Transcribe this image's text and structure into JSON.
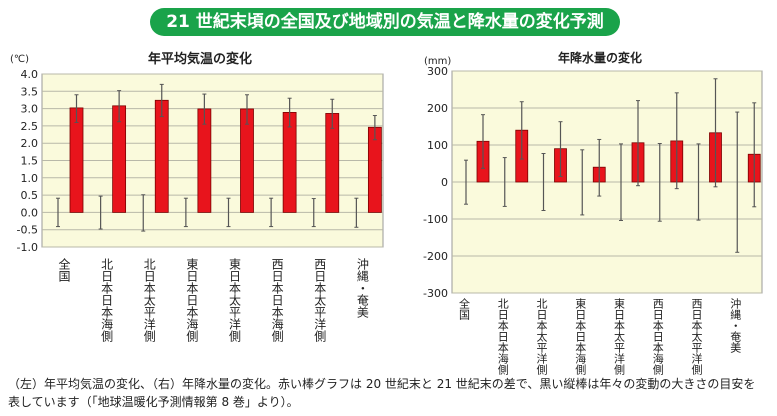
{
  "title": "21 世紀末頃の全国及び地域別の気温と降水量の変化予測",
  "caption": [
    "（左）年平均気温の変化、（右）年降水量の変化。赤い棒グラフは 20 世紀末と 21 世紀末の差で、黒い縦棒は年々の変動の大きさの目安を",
    "表しています（「地球温暖化予測情報第 8 巻」より）。"
  ],
  "colors": {
    "bar": "#e8141c",
    "plot_bg": "#fafadc",
    "grid": "#b8b8a8",
    "title_bg": "#1aa34a"
  },
  "chart_data": [
    {
      "type": "bar",
      "title": "年平均気温の変化",
      "ylabel": "(℃)",
      "ylim": [
        -1.0,
        4.0
      ],
      "yticks": [
        "4.0",
        "3.5",
        "3.0",
        "2.5",
        "2.0",
        "1.5",
        "1.0",
        "0.5",
        "0.0",
        "-0.5",
        "-1.0"
      ],
      "grid": true,
      "categories": [
        "全国",
        "北日本日本海側",
        "北日本太平洋側",
        "東日本日本海側",
        "東日本太平洋側",
        "西日本日本海側",
        "西日本太平洋側",
        "沖縄・奄美"
      ],
      "values": [
        3.02,
        3.08,
        3.24,
        2.99,
        2.99,
        2.89,
        2.86,
        2.46
      ],
      "error_ranges": [
        [
          2.6,
          3.4
        ],
        [
          2.62,
          3.52
        ],
        [
          2.77,
          3.7
        ],
        [
          2.55,
          3.42
        ],
        [
          2.55,
          3.4
        ],
        [
          2.47,
          3.3
        ],
        [
          2.43,
          3.27
        ],
        [
          2.1,
          2.8
        ]
      ],
      "variability": [
        [
          -0.41,
          0.41
        ],
        [
          -0.48,
          0.47
        ],
        [
          -0.54,
          0.51
        ],
        [
          -0.41,
          0.41
        ],
        [
          -0.41,
          0.41
        ],
        [
          -0.41,
          0.41
        ],
        [
          -0.41,
          0.4
        ],
        [
          -0.43,
          0.41
        ]
      ]
    },
    {
      "type": "bar",
      "title": "年降水量の変化",
      "ylabel": "(mm)",
      "ylim": [
        -300,
        300
      ],
      "yticks": [
        "300",
        "200",
        "100",
        "0",
        "-100",
        "-200",
        "-300"
      ],
      "grid": true,
      "categories": [
        "全国",
        "北日本日本海側",
        "北日本太平洋側",
        "東日本日本海側",
        "東日本太平洋側",
        "西日本日本海側",
        "西日本太平洋側",
        "沖縄・奄美"
      ],
      "values": [
        110,
        140,
        90,
        40,
        106,
        111,
        133,
        75
      ],
      "error_ranges": [
        [
          37,
          182
        ],
        [
          62,
          217
        ],
        [
          15,
          163
        ],
        [
          -38,
          115
        ],
        [
          -10,
          220
        ],
        [
          -18,
          241
        ],
        [
          -13,
          279
        ],
        [
          -67,
          214
        ]
      ],
      "variability": [
        [
          -60,
          59
        ],
        [
          -66,
          66
        ],
        [
          -77,
          77
        ],
        [
          -89,
          87
        ],
        [
          -104,
          103
        ],
        [
          -106,
          104
        ],
        [
          -103,
          103
        ],
        [
          -190,
          189
        ]
      ]
    }
  ]
}
